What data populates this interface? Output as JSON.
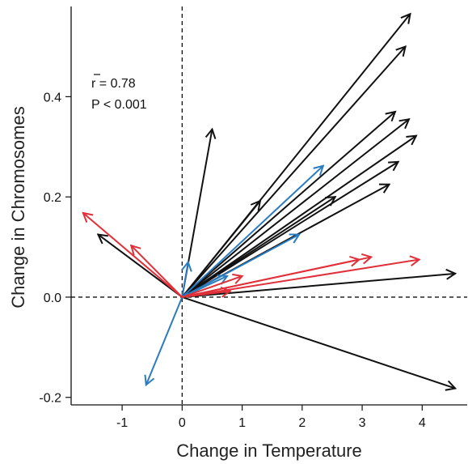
{
  "chart_data": {
    "type": "vector-arrow",
    "xlabel": "Change in Temperature",
    "ylabel": "Change in Chromosomes",
    "xlim": [
      -1.85,
      4.75
    ],
    "ylim": [
      -0.215,
      0.58
    ],
    "xticks": [
      -1,
      0,
      1,
      2,
      3,
      4
    ],
    "yticks": [
      -0.2,
      0.0,
      0.2,
      0.4
    ],
    "xtick_labels": [
      "-1",
      "0",
      "1",
      "2",
      "3",
      "4"
    ],
    "ytick_labels": [
      "-0.2",
      "0.0",
      "0.2",
      "0.4"
    ],
    "reference_lines": {
      "x": 0,
      "y": 0,
      "style": "dashed"
    },
    "annotation": {
      "r_label": "r = 0.78",
      "p_label": "P < 0.001"
    },
    "colors": {
      "black": "#111111",
      "blue": "#2b7bbf",
      "red": "#e0303a"
    },
    "arrows": [
      {
        "color": "black",
        "x": 3.8,
        "y": 0.565
      },
      {
        "color": "black",
        "x": 3.72,
        "y": 0.5
      },
      {
        "color": "black",
        "x": 3.55,
        "y": 0.37
      },
      {
        "color": "black",
        "x": 3.78,
        "y": 0.355
      },
      {
        "color": "black",
        "x": 3.9,
        "y": 0.322
      },
      {
        "color": "black",
        "x": 3.6,
        "y": 0.27
      },
      {
        "color": "black",
        "x": 3.45,
        "y": 0.225
      },
      {
        "color": "black",
        "x": 2.55,
        "y": 0.2
      },
      {
        "color": "black",
        "x": 1.3,
        "y": 0.192
      },
      {
        "color": "black",
        "x": 0.5,
        "y": 0.335
      },
      {
        "color": "black",
        "x": -1.4,
        "y": 0.125
      },
      {
        "color": "black",
        "x": 4.55,
        "y": 0.047
      },
      {
        "color": "black",
        "x": 4.55,
        "y": -0.182
      },
      {
        "color": "blue",
        "x": 2.35,
        "y": 0.262
      },
      {
        "color": "blue",
        "x": 1.95,
        "y": 0.125
      },
      {
        "color": "blue",
        "x": 0.1,
        "y": 0.07
      },
      {
        "color": "blue",
        "x": 0.75,
        "y": 0.042
      },
      {
        "color": "blue",
        "x": -0.6,
        "y": -0.175
      },
      {
        "color": "red",
        "x": -1.65,
        "y": 0.168
      },
      {
        "color": "red",
        "x": -0.85,
        "y": 0.103
      },
      {
        "color": "red",
        "x": 3.15,
        "y": 0.08
      },
      {
        "color": "red",
        "x": 2.95,
        "y": 0.075
      },
      {
        "color": "red",
        "x": 3.95,
        "y": 0.075
      },
      {
        "color": "red",
        "x": 1.0,
        "y": 0.042
      },
      {
        "color": "red",
        "x": 0.8,
        "y": 0.012
      }
    ]
  }
}
